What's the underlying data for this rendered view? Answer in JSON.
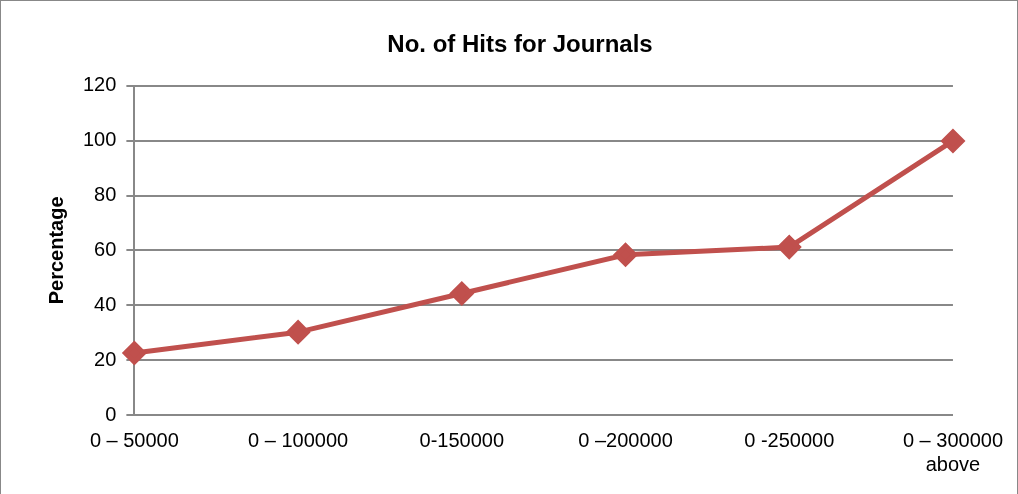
{
  "chart_data": {
    "type": "line",
    "title": "No. of Hits for Journals",
    "ylabel": "Percentage",
    "categories": [
      "0 – 50000",
      "0 – 100000",
      "0-150000",
      "0 –200000",
      "0 -250000",
      "0 – 300000\nabove"
    ],
    "series": [
      {
        "color": "#c0504d",
        "values": [
          22.6,
          30.2,
          44.3,
          58.4,
          61.2,
          99.9
        ]
      }
    ],
    "ylim": [
      0,
      120
    ],
    "yticks": [
      0,
      20,
      40,
      60,
      80,
      100,
      120
    ],
    "grid": "y",
    "legend": false,
    "marker": "diamond",
    "line_style": "solid"
  }
}
